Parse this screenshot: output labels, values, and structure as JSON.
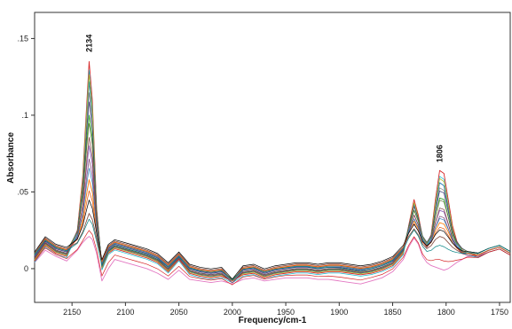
{
  "chart_data": {
    "type": "line",
    "title": "",
    "xlabel": "Frequency/cm-1",
    "ylabel": "Absorbance",
    "xlim": [
      2185,
      1740
    ],
    "ylim": [
      -0.022,
      0.167
    ],
    "x_reversed": true,
    "grid": false,
    "legend": "none",
    "xticks": [
      2150,
      2100,
      2050,
      2000,
      1950,
      1900,
      1850,
      1800,
      1750
    ],
    "xtick_labels": [
      "2150",
      "2100",
      "2050",
      "2000",
      "1950",
      "1900",
      "1850",
      "1800",
      "1750"
    ],
    "yticks": [
      0,
      0.05,
      0.1,
      0.15
    ],
    "ytick_labels": [
      "0",
      ".05",
      ".1",
      ".15"
    ],
    "annotations": [
      {
        "text": "2134",
        "x": 2134,
        "y": 0.14
      },
      {
        "text": "1806",
        "x": 1806,
        "y": 0.068
      }
    ],
    "series_colors": [
      "#d62728",
      "#1f77b4",
      "#2ca02c",
      "#9467bd",
      "#ff7f0e",
      "#8c564b",
      "#e377c2",
      "#17becf",
      "#bcbd22",
      "#7f7f7f",
      "#393b79",
      "#637939",
      "#843c39",
      "#7b4173",
      "#3182bd",
      "#e6550d",
      "#000000",
      "#008080"
    ],
    "series": [
      {
        "x": [
          2185,
          2175,
          2165,
          2155,
          2145,
          2140,
          2136,
          2134,
          2131,
          2127,
          2122,
          2116,
          2110,
          2100,
          2090,
          2080,
          2070,
          2060,
          2050,
          2040,
          2030,
          2020,
          2010,
          2000,
          1990,
          1980,
          1970,
          1960,
          1950,
          1940,
          1930,
          1920,
          1910,
          1900,
          1890,
          1880,
          1870,
          1860,
          1850,
          1840,
          1835,
          1830,
          1826,
          1822,
          1818,
          1814,
          1810,
          1806,
          1802,
          1798,
          1794,
          1790,
          1785,
          1780,
          1770,
          1760,
          1750,
          1740
        ],
        "y": [
          0.005,
          0.015,
          0.01,
          0.008,
          0.025,
          0.06,
          0.11,
          0.135,
          0.11,
          0.04,
          0.0,
          0.01,
          0.013,
          0.011,
          0.009,
          0.007,
          0.004,
          -0.002,
          0.006,
          -0.003,
          -0.005,
          -0.006,
          -0.005,
          -0.008,
          -0.004,
          -0.003,
          -0.006,
          -0.004,
          -0.003,
          -0.002,
          -0.002,
          -0.003,
          -0.002,
          -0.002,
          -0.003,
          -0.004,
          -0.003,
          -0.001,
          0.002,
          0.01,
          0.028,
          0.045,
          0.035,
          0.02,
          0.016,
          0.022,
          0.045,
          0.064,
          0.062,
          0.045,
          0.028,
          0.018,
          0.012,
          0.01,
          0.008,
          0.012,
          0.014,
          0.01
        ]
      },
      {
        "x": [
          2185,
          2175,
          2165,
          2155,
          2145,
          2140,
          2136,
          2134,
          2131,
          2127,
          2122,
          2116,
          2110,
          2100,
          2090,
          2080,
          2070,
          2060,
          2050,
          2040,
          2030,
          2020,
          2010,
          2000,
          1990,
          1980,
          1970,
          1960,
          1950,
          1940,
          1930,
          1920,
          1910,
          1900,
          1890,
          1880,
          1870,
          1860,
          1850,
          1840,
          1835,
          1830,
          1826,
          1822,
          1818,
          1814,
          1810,
          1806,
          1802,
          1798,
          1794,
          1790,
          1785,
          1780,
          1770,
          1760,
          1750,
          1740
        ],
        "y": [
          0.006,
          0.016,
          0.011,
          0.009,
          0.024,
          0.055,
          0.1,
          0.122,
          0.1,
          0.038,
          0.001,
          0.011,
          0.014,
          0.012,
          0.01,
          0.008,
          0.005,
          -0.001,
          0.007,
          -0.002,
          -0.004,
          -0.005,
          -0.004,
          -0.008,
          -0.003,
          -0.002,
          -0.005,
          -0.003,
          -0.002,
          -0.001,
          -0.001,
          -0.002,
          -0.001,
          -0.001,
          -0.002,
          -0.003,
          -0.002,
          0.0,
          0.003,
          0.011,
          0.027,
          0.042,
          0.033,
          0.02,
          0.016,
          0.021,
          0.04,
          0.056,
          0.054,
          0.04,
          0.025,
          0.017,
          0.012,
          0.01,
          0.009,
          0.012,
          0.014,
          0.01
        ]
      },
      {
        "x": [
          2185,
          2175,
          2165,
          2155,
          2145,
          2140,
          2136,
          2134,
          2131,
          2127,
          2122,
          2116,
          2110,
          2100,
          2090,
          2080,
          2070,
          2060,
          2050,
          2040,
          2030,
          2020,
          2010,
          2000,
          1990,
          1980,
          1970,
          1960,
          1950,
          1940,
          1930,
          1920,
          1910,
          1900,
          1890,
          1880,
          1870,
          1860,
          1850,
          1840,
          1835,
          1830,
          1826,
          1822,
          1818,
          1814,
          1810,
          1806,
          1802,
          1798,
          1794,
          1790,
          1785,
          1780,
          1770,
          1760,
          1750,
          1740
        ],
        "y": [
          0.007,
          0.017,
          0.012,
          0.01,
          0.023,
          0.048,
          0.085,
          0.1,
          0.085,
          0.034,
          0.002,
          0.012,
          0.015,
          0.013,
          0.011,
          0.009,
          0.006,
          0.0,
          0.007,
          -0.001,
          -0.003,
          -0.004,
          -0.003,
          -0.008,
          -0.002,
          -0.001,
          -0.004,
          -0.002,
          -0.001,
          0.0,
          0.0,
          -0.001,
          0.0,
          0.0,
          -0.001,
          -0.002,
          -0.001,
          0.001,
          0.004,
          0.012,
          0.026,
          0.038,
          0.031,
          0.02,
          0.016,
          0.02,
          0.034,
          0.046,
          0.045,
          0.034,
          0.022,
          0.016,
          0.012,
          0.01,
          0.009,
          0.012,
          0.014,
          0.01
        ]
      },
      {
        "x": [
          2185,
          2175,
          2165,
          2155,
          2145,
          2140,
          2136,
          2134,
          2131,
          2127,
          2122,
          2116,
          2110,
          2100,
          2090,
          2080,
          2070,
          2060,
          2050,
          2040,
          2030,
          2020,
          2010,
          2000,
          1990,
          1980,
          1970,
          1960,
          1950,
          1940,
          1930,
          1920,
          1910,
          1900,
          1890,
          1880,
          1870,
          1860,
          1850,
          1840,
          1835,
          1830,
          1826,
          1822,
          1818,
          1814,
          1810,
          1806,
          1802,
          1798,
          1794,
          1790,
          1785,
          1780,
          1770,
          1760,
          1750,
          1740
        ],
        "y": [
          0.008,
          0.018,
          0.013,
          0.011,
          0.022,
          0.04,
          0.068,
          0.08,
          0.068,
          0.03,
          0.003,
          0.013,
          0.016,
          0.014,
          0.012,
          0.01,
          0.007,
          0.001,
          0.008,
          0.0,
          -0.002,
          -0.003,
          -0.002,
          -0.008,
          -0.001,
          0.0,
          -0.003,
          -0.001,
          0.0,
          0.001,
          0.001,
          0.0,
          0.001,
          0.001,
          0.0,
          -0.001,
          0.0,
          0.002,
          0.005,
          0.013,
          0.025,
          0.035,
          0.029,
          0.019,
          0.015,
          0.019,
          0.03,
          0.038,
          0.037,
          0.029,
          0.02,
          0.015,
          0.011,
          0.01,
          0.009,
          0.012,
          0.014,
          0.01
        ]
      },
      {
        "x": [
          2185,
          2175,
          2165,
          2155,
          2145,
          2140,
          2136,
          2134,
          2131,
          2127,
          2122,
          2116,
          2110,
          2100,
          2090,
          2080,
          2070,
          2060,
          2050,
          2040,
          2030,
          2020,
          2010,
          2000,
          1990,
          1980,
          1970,
          1960,
          1950,
          1940,
          1930,
          1920,
          1910,
          1900,
          1890,
          1880,
          1870,
          1860,
          1850,
          1840,
          1835,
          1830,
          1826,
          1822,
          1818,
          1814,
          1810,
          1806,
          1802,
          1798,
          1794,
          1790,
          1785,
          1780,
          1770,
          1760,
          1750,
          1740
        ],
        "y": [
          0.009,
          0.019,
          0.014,
          0.012,
          0.02,
          0.032,
          0.05,
          0.058,
          0.05,
          0.026,
          0.004,
          0.014,
          0.017,
          0.015,
          0.013,
          0.011,
          0.008,
          0.002,
          0.009,
          0.001,
          -0.001,
          -0.002,
          -0.001,
          -0.008,
          0.0,
          0.001,
          -0.002,
          0.0,
          0.001,
          0.002,
          0.002,
          0.001,
          0.002,
          0.002,
          0.001,
          0.0,
          0.001,
          0.003,
          0.006,
          0.014,
          0.024,
          0.031,
          0.026,
          0.018,
          0.015,
          0.018,
          0.025,
          0.03,
          0.029,
          0.024,
          0.018,
          0.014,
          0.011,
          0.01,
          0.009,
          0.012,
          0.014,
          0.01
        ]
      },
      {
        "x": [
          2185,
          2175,
          2165,
          2155,
          2145,
          2140,
          2136,
          2134,
          2131,
          2127,
          2122,
          2116,
          2110,
          2100,
          2090,
          2080,
          2070,
          2060,
          2050,
          2040,
          2030,
          2020,
          2010,
          2000,
          1990,
          1980,
          1970,
          1960,
          1950,
          1940,
          1930,
          1920,
          1910,
          1900,
          1890,
          1880,
          1870,
          1860,
          1850,
          1840,
          1835,
          1830,
          1826,
          1822,
          1818,
          1814,
          1810,
          1806,
          1802,
          1798,
          1794,
          1790,
          1785,
          1780,
          1770,
          1760,
          1750,
          1740
        ],
        "y": [
          0.01,
          0.02,
          0.015,
          0.013,
          0.017,
          0.024,
          0.032,
          0.036,
          0.032,
          0.02,
          0.005,
          0.015,
          0.018,
          0.016,
          0.014,
          0.012,
          0.009,
          0.003,
          0.01,
          0.002,
          0.0,
          -0.001,
          0.0,
          -0.008,
          0.001,
          0.002,
          -0.001,
          0.001,
          0.002,
          0.003,
          0.003,
          0.002,
          0.003,
          0.003,
          0.002,
          0.001,
          0.002,
          0.004,
          0.007,
          0.014,
          0.021,
          0.026,
          0.022,
          0.016,
          0.013,
          0.015,
          0.019,
          0.021,
          0.02,
          0.017,
          0.014,
          0.012,
          0.01,
          0.01,
          0.009,
          0.012,
          0.014,
          0.01
        ]
      },
      {
        "x": [
          2185,
          2175,
          2165,
          2155,
          2145,
          2140,
          2136,
          2134,
          2131,
          2127,
          2122,
          2116,
          2110,
          2100,
          2090,
          2080,
          2070,
          2060,
          2050,
          2040,
          2030,
          2020,
          2010,
          2000,
          1990,
          1980,
          1970,
          1960,
          1950,
          1940,
          1930,
          1920,
          1910,
          1900,
          1890,
          1880,
          1870,
          1860,
          1850,
          1840,
          1835,
          1830,
          1826,
          1822,
          1818,
          1814,
          1810,
          1806,
          1802,
          1798,
          1794,
          1790,
          1785,
          1780,
          1770,
          1760,
          1750,
          1740
        ],
        "y": [
          0.004,
          0.012,
          0.008,
          0.005,
          0.012,
          0.017,
          0.02,
          0.021,
          0.019,
          0.01,
          -0.008,
          0.0,
          0.006,
          0.004,
          0.002,
          0.0,
          -0.003,
          -0.007,
          -0.001,
          -0.007,
          -0.008,
          -0.009,
          -0.008,
          -0.01,
          -0.007,
          -0.006,
          -0.008,
          -0.007,
          -0.006,
          -0.006,
          -0.006,
          -0.007,
          -0.007,
          -0.008,
          -0.009,
          -0.01,
          -0.008,
          -0.006,
          -0.002,
          0.006,
          0.014,
          0.02,
          0.016,
          0.008,
          0.004,
          0.002,
          0.001,
          0.0,
          -0.001,
          0.0,
          0.002,
          0.004,
          0.006,
          0.008,
          0.008,
          0.012,
          0.014,
          0.01
        ]
      }
    ]
  }
}
